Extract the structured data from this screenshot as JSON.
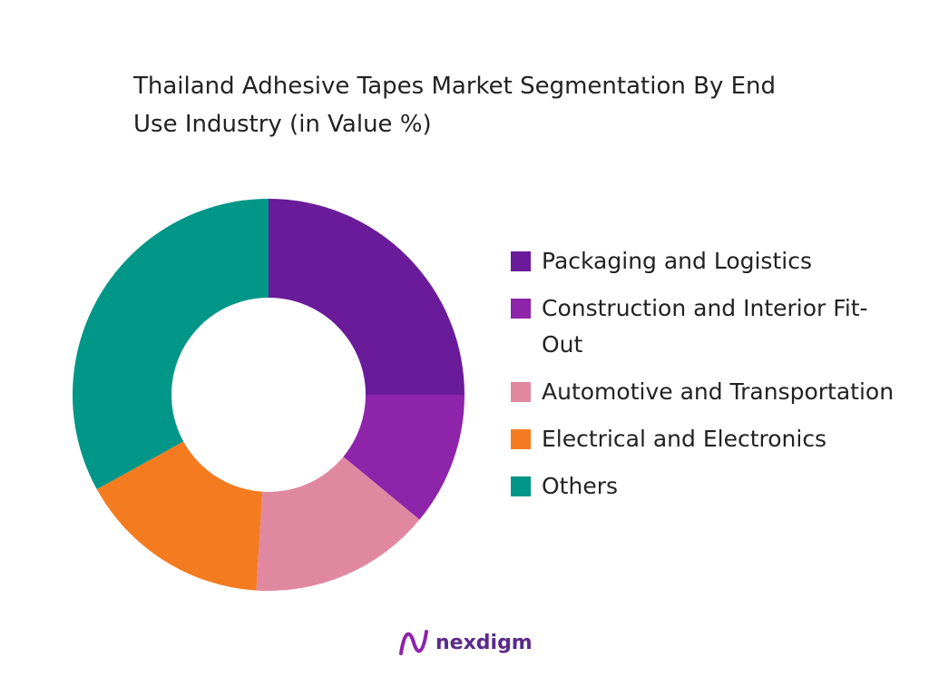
{
  "chart_data": {
    "type": "donut",
    "title": "Thailand Adhesive Tapes Market Segmentation By End Use Industry (in Value %)",
    "categories": [
      "Packaging and Logistics",
      "Construction and Interior Fit-Out",
      "Automotive and Transportation",
      "Electrical and Electronics",
      "Others"
    ],
    "values": [
      25,
      11,
      15,
      16,
      33
    ],
    "colors": [
      "#6a1b9a",
      "#8e24aa",
      "#e088a0",
      "#f47b20",
      "#009688"
    ],
    "legend": "right"
  },
  "footer": {
    "brand": "nexdigm"
  }
}
